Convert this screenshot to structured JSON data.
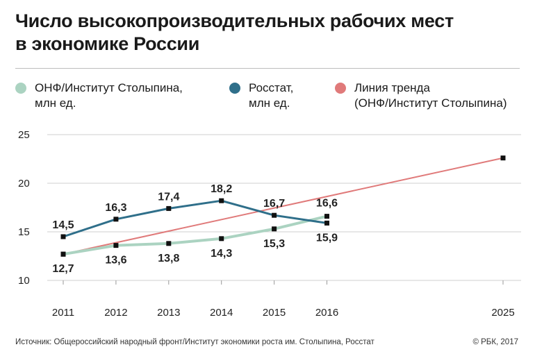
{
  "title_lines": [
    "Число высокопроизводительных рабочих мест",
    "в экономике России"
  ],
  "legend": [
    {
      "lines": [
        "ОНФ/Институт Столыпина,",
        "млн ед."
      ],
      "color": "#abd3c1"
    },
    {
      "lines": [
        "Росстат,",
        "млн ед."
      ],
      "color": "#2f6f8a"
    },
    {
      "lines": [
        "Линия тренда",
        "(ОНФ/Институт Столыпина)"
      ],
      "color": "#e07a7a"
    }
  ],
  "chart_data": {
    "type": "line",
    "x_ticks": [
      "2011",
      "2012",
      "2013",
      "2014",
      "2015",
      "2016",
      "2025"
    ],
    "y_ticks": [
      "10",
      "15",
      "20",
      "25"
    ],
    "ylim": [
      10,
      25
    ],
    "grid": true,
    "series": [
      {
        "name": "ОНФ/Институт Столыпина, млн ед.",
        "color": "#abd3c1",
        "x": [
          2011,
          2012,
          2013,
          2014,
          2015,
          2016
        ],
        "values": [
          12.7,
          13.6,
          13.8,
          14.3,
          15.3,
          16.6
        ],
        "labels": [
          "12,7",
          "13,6",
          "13,8",
          "14,3",
          "15,3",
          "16,6"
        ]
      },
      {
        "name": "Росстат, млн ед.",
        "color": "#2f6f8a",
        "x": [
          2011,
          2012,
          2013,
          2014,
          2015,
          2016
        ],
        "values": [
          14.5,
          16.3,
          17.4,
          18.2,
          16.7,
          15.9
        ],
        "labels": [
          "14,5",
          "16,3",
          "17,4",
          "18,2",
          "16,7",
          "15,9"
        ]
      },
      {
        "name": "Линия тренда (ОНФ/Институт Столыпина)",
        "color": "#e07a7a",
        "x": [
          2011,
          2025
        ],
        "values": [
          12.7,
          22.6
        ]
      }
    ]
  },
  "footer": {
    "source": "Источник: Общероссийский народный фронт/Институт экономики роста им. Столыпина, Росстат",
    "copyright": "© РБК, 2017"
  }
}
